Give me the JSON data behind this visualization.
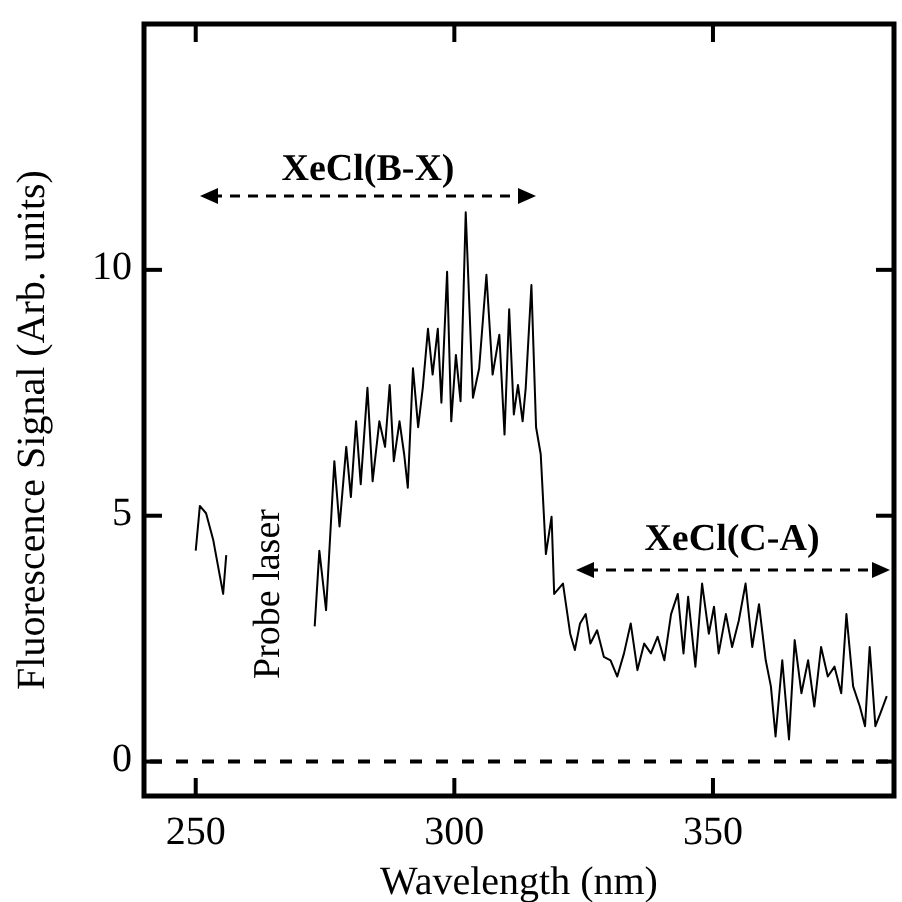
{
  "chart_data": {
    "type": "line",
    "xlabel": "Wavelength (nm)",
    "ylabel": "Fluorescence Signal (Arb. units)",
    "xlim": [
      240,
      385
    ],
    "ylim": [
      -0.7,
      15
    ],
    "xticks": [
      250,
      300,
      350
    ],
    "yticks": [
      0,
      5,
      10
    ],
    "grid": false,
    "marker": "none",
    "line_style": "solid",
    "x": [
      250.0,
      250.8,
      252.0,
      253.4,
      255.3,
      255.9,
      264.0,
      273.0,
      273.9,
      275.2,
      276.8,
      277.8,
      279.1,
      280.0,
      281.0,
      281.9,
      283.2,
      284.2,
      285.5,
      286.6,
      287.5,
      288.3,
      289.4,
      290.3,
      291.0,
      292.0,
      293.0,
      293.9,
      294.9,
      295.8,
      296.8,
      297.5,
      298.6,
      299.4,
      300.3,
      301.2,
      302.2,
      303.6,
      304.8,
      306.2,
      307.4,
      308.7,
      309.7,
      310.6,
      311.5,
      312.3,
      313.2,
      313.8,
      314.9,
      315.8,
      316.7,
      317.7,
      318.8,
      319.3,
      321.0,
      322.4,
      323.3,
      324.3,
      325.4,
      326.3,
      327.6,
      328.9,
      330.2,
      331.5,
      332.8,
      334.1,
      335.4,
      336.7,
      338.0,
      339.3,
      340.6,
      341.9,
      343.2,
      344.3,
      345.2,
      346.6,
      347.9,
      349.2,
      350.2,
      351.1,
      352.5,
      353.7,
      355.0,
      356.3,
      357.6,
      358.9,
      360.2,
      361.2,
      362.1,
      363.4,
      364.7,
      365.8,
      367.1,
      368.4,
      369.6,
      370.9,
      372.2,
      373.5,
      374.8,
      375.8,
      377.1,
      378.4,
      379.4,
      380.3,
      381.4,
      382.4,
      383.6
    ],
    "series": [
      {
        "color": "#000000",
        "values": [
          4.29,
          5.2,
          5.05,
          4.5,
          3.41,
          4.2,
          null,
          2.75,
          4.29,
          3.08,
          6.11,
          4.78,
          6.4,
          5.38,
          6.92,
          5.64,
          7.6,
          5.7,
          6.92,
          6.4,
          7.66,
          6.11,
          6.92,
          6.25,
          5.57,
          8.0,
          6.8,
          7.6,
          8.8,
          7.87,
          8.8,
          7.3,
          9.96,
          6.92,
          8.27,
          7.33,
          11.17,
          7.4,
          8.0,
          9.9,
          7.87,
          8.68,
          6.65,
          9.2,
          7.06,
          7.66,
          6.92,
          7.6,
          9.69,
          6.8,
          6.25,
          4.22,
          4.98,
          3.41,
          3.62,
          2.6,
          2.27,
          2.81,
          3.0,
          2.4,
          2.67,
          2.13,
          2.06,
          1.73,
          2.2,
          2.81,
          1.86,
          2.4,
          2.2,
          2.54,
          2.06,
          3.0,
          3.41,
          2.2,
          3.35,
          1.93,
          3.62,
          2.6,
          3.15,
          2.2,
          3.0,
          2.33,
          2.87,
          3.62,
          2.33,
          3.2,
          2.06,
          1.53,
          0.51,
          2.06,
          0.45,
          2.47,
          1.39,
          2.06,
          1.12,
          2.33,
          1.73,
          1.93,
          1.39,
          3.0,
          1.53,
          1.12,
          0.72,
          2.33,
          0.72,
          0.99,
          1.33
        ]
      }
    ],
    "ref_lines": [
      {
        "axis": "y",
        "value": 0,
        "line_style": "dashed",
        "color": "#000000"
      }
    ],
    "annotations": [
      "XeCl(B-X)",
      "XeCl(C-A)",
      "Probe laser"
    ]
  }
}
